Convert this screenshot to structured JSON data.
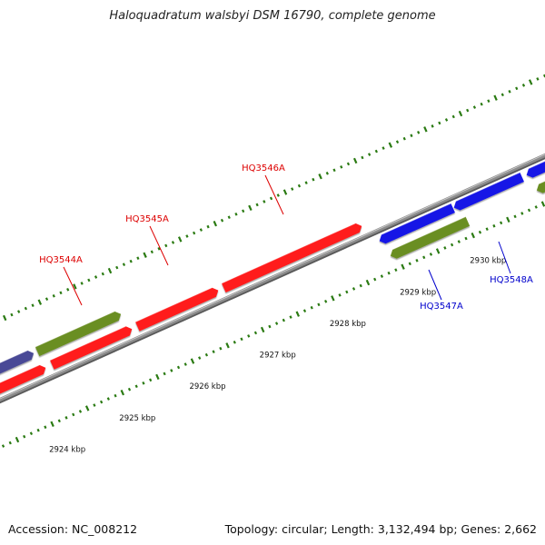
{
  "title": "Haloquadratum walsbyi DSM 16790, complete genome",
  "footer": {
    "accession": "Accession: NC_008212",
    "summary": "Topology: circular; Length: 3,132,494 bp; Genes: 2,662"
  },
  "colors": {
    "backbone": "#8c8c8c",
    "tick": "#2a7a12",
    "label_forward": "#dd0000",
    "label_reverse": "#0000cc",
    "gene_red": "#ff1a1a",
    "gene_blue": "#1515e6",
    "gene_green": "#6b8e23",
    "gene_navy": "#4a4a96"
  },
  "scale_labels": [
    "2924 kbp",
    "2925 kbp",
    "2926 kbp",
    "2927 kbp",
    "2928 kbp",
    "2929 kbp",
    "2930 kbp"
  ],
  "gene_labels": [
    {
      "text": "HQ3544A",
      "strand": "forward"
    },
    {
      "text": "HQ3545A",
      "strand": "forward"
    },
    {
      "text": "HQ3546A",
      "strand": "forward"
    },
    {
      "text": "HQ3547A",
      "strand": "reverse"
    },
    {
      "text": "HQ3548A",
      "strand": "reverse"
    }
  ]
}
